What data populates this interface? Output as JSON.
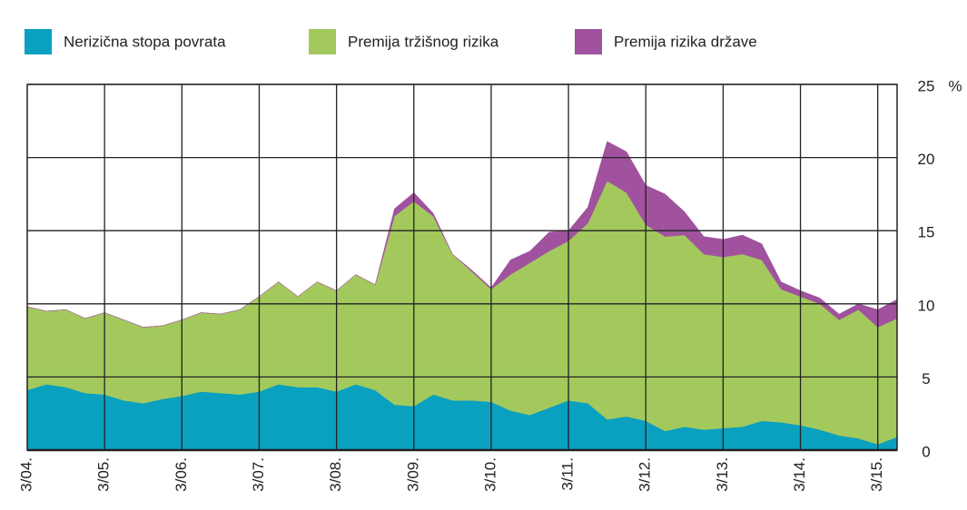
{
  "chart_data": {
    "type": "stacked_area",
    "categories": [
      "3/04.",
      null,
      null,
      null,
      "3/05.",
      null,
      null,
      null,
      "3/06.",
      null,
      null,
      null,
      "3/07.",
      null,
      null,
      null,
      "3/08.",
      null,
      null,
      null,
      "3/09.",
      null,
      null,
      null,
      "3/10.",
      null,
      null,
      null,
      "3/11.",
      null,
      null,
      null,
      "3/12.",
      null,
      null,
      null,
      "3/13.",
      null,
      null,
      null,
      "3/14.",
      null,
      null,
      null,
      "3/15.",
      null
    ],
    "series": [
      {
        "name": "Nerizična stopa povrata",
        "color": "#0aa0bf",
        "values": [
          4.1,
          4.5,
          4.3,
          3.9,
          3.8,
          3.4,
          3.2,
          3.5,
          3.7,
          4.0,
          3.9,
          3.8,
          4.0,
          4.5,
          4.3,
          4.3,
          4.0,
          4.5,
          4.1,
          3.1,
          3.0,
          3.8,
          3.4,
          3.4,
          3.3,
          2.7,
          2.4,
          2.9,
          3.4,
          3.2,
          2.1,
          2.3,
          2.0,
          1.3,
          1.6,
          1.4,
          1.5,
          1.6,
          2.0,
          1.9,
          1.7,
          1.4,
          1.0,
          0.8,
          0.4,
          0.9
        ]
      },
      {
        "name": "Premija tržišnog rizika",
        "color": "#a3c95c",
        "values": [
          5.7,
          5.0,
          5.3,
          5.1,
          5.6,
          5.5,
          5.2,
          5.0,
          5.2,
          5.4,
          5.4,
          5.8,
          6.5,
          7.0,
          6.2,
          7.2,
          6.9,
          7.5,
          7.2,
          12.9,
          14.0,
          12.2,
          10.0,
          8.8,
          7.7,
          9.3,
          10.4,
          10.7,
          10.9,
          12.3,
          16.3,
          15.3,
          13.4,
          13.3,
          13.1,
          12.0,
          11.7,
          11.8,
          11.0,
          9.1,
          8.8,
          8.6,
          7.9,
          8.8,
          8.0,
          8.1
        ]
      },
      {
        "name": "Premija rizika države",
        "color": "#a0529e",
        "values": [
          0,
          0,
          0,
          0,
          0,
          0,
          0,
          0,
          0,
          0,
          0,
          0,
          0,
          0,
          0,
          0,
          0,
          0,
          0,
          0.5,
          0.6,
          0.2,
          0,
          0.1,
          0.1,
          1.0,
          0.8,
          1.3,
          0.7,
          1.1,
          2.7,
          2.8,
          2.7,
          2.9,
          1.6,
          1.2,
          1.2,
          1.3,
          1.1,
          0.5,
          0.4,
          0.4,
          0.4,
          0.4,
          1.2,
          1.3
        ]
      }
    ],
    "ylim": [
      0,
      25
    ],
    "yticks": [
      0,
      5,
      10,
      15,
      20,
      25
    ],
    "unit": "%",
    "grid": true,
    "legend": "top"
  }
}
